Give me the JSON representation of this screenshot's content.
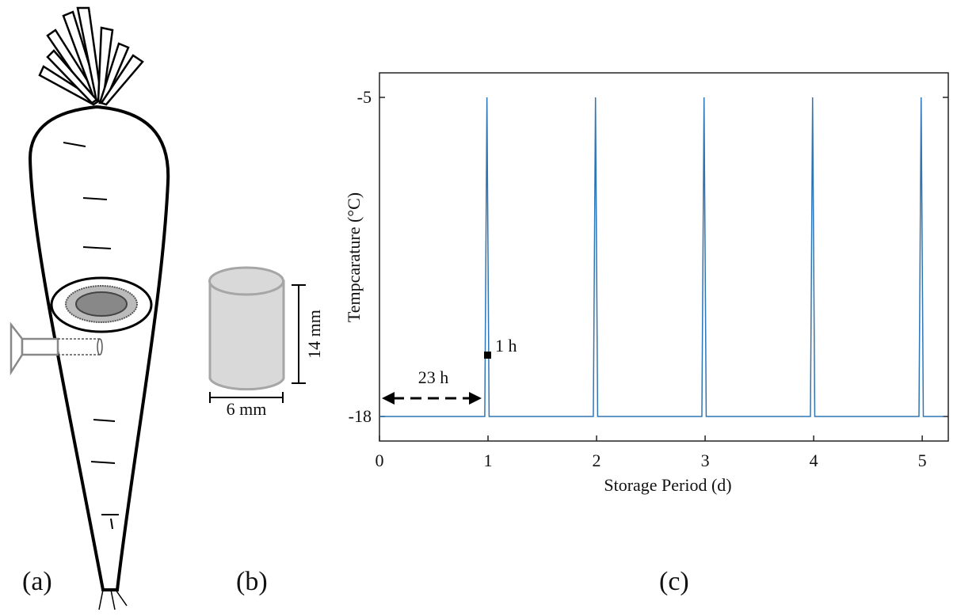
{
  "panels": {
    "a": "(a)",
    "b": "(b)",
    "c": "(c)",
    "height_label": "14 mm",
    "width_label": "6 mm"
  },
  "chart_data": {
    "type": "line",
    "xlabel": "Storage Period (d)",
    "ylabel": "Tempcarature (°C)",
    "annotations": [
      "1 h",
      "23 h"
    ],
    "color": "#2e75b6",
    "x": [
      0,
      0.97,
      0.99,
      1.01,
      1.97,
      1.99,
      2.01,
      2.97,
      2.99,
      3.01,
      3.97,
      3.99,
      4.01,
      4.97,
      4.99,
      5.01,
      5.2
    ],
    "values": [
      -18,
      -18,
      -5,
      -18,
      -18,
      -5,
      -18,
      -18,
      -5,
      -18,
      -18,
      -5,
      -18,
      -18,
      -5,
      -18,
      -18
    ],
    "xlim": [
      0,
      5.24
    ],
    "ylim": [
      -19,
      -4
    ],
    "xticks": [
      0,
      1,
      2,
      3,
      4,
      5
    ],
    "yticks": [
      -18,
      -5
    ]
  }
}
